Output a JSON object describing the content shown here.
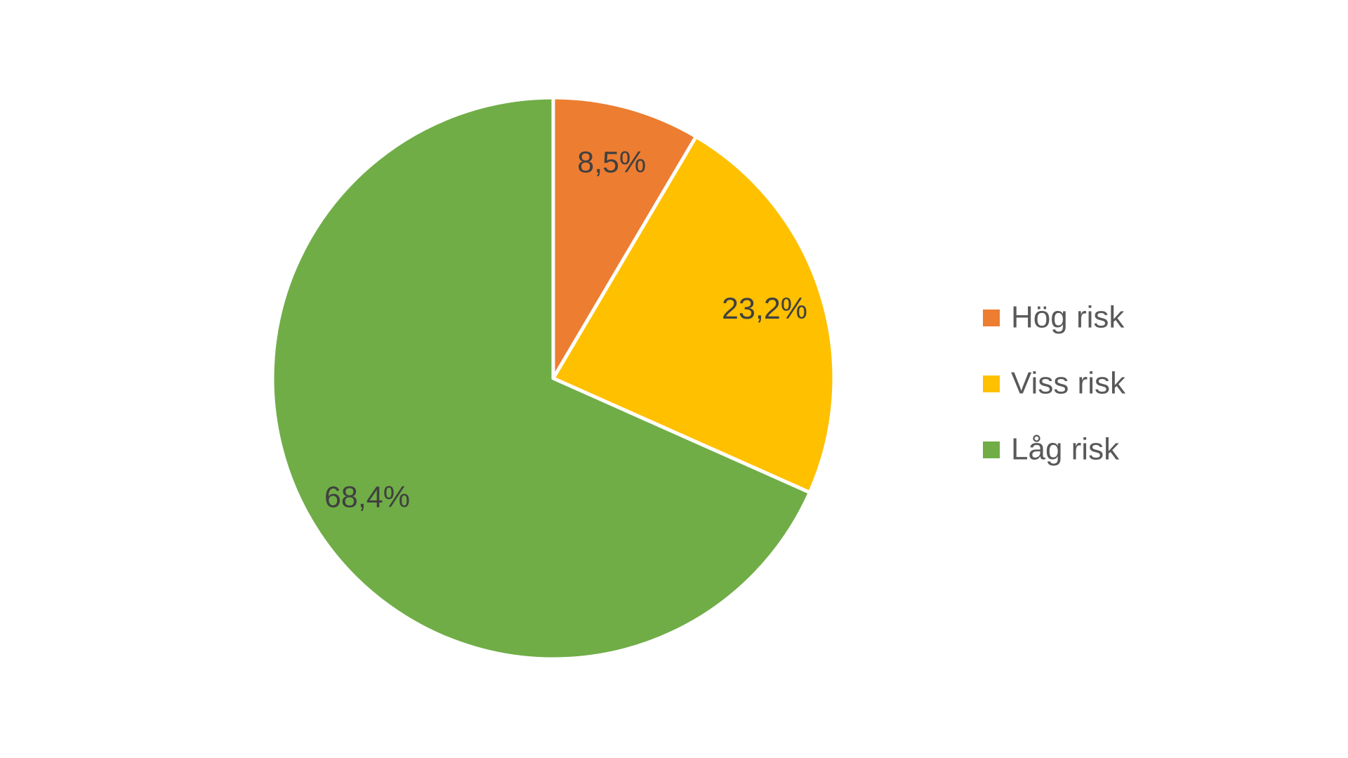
{
  "chart_data": {
    "type": "pie",
    "categories": [
      "Hög risk",
      "Viss risk",
      "Låg risk"
    ],
    "values": [
      8.5,
      23.2,
      68.4
    ],
    "value_labels": [
      "8,5%",
      "23,2%",
      "68,4%"
    ],
    "colors": [
      "#ed7d31",
      "#ffc000",
      "#70ad47"
    ],
    "legend": "right"
  }
}
